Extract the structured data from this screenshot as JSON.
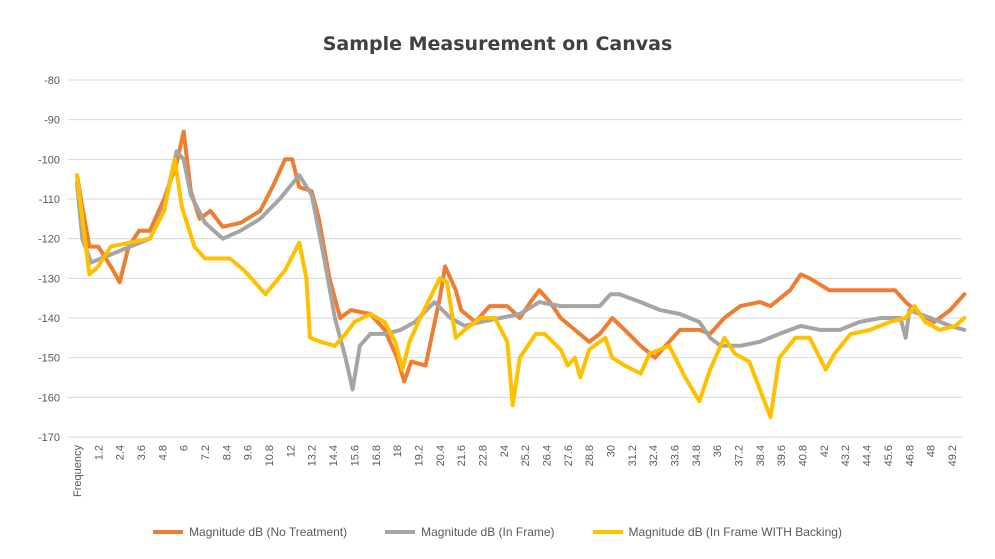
{
  "chart_data": {
    "type": "line",
    "title": "Sample Measurement  on Canvas",
    "xlabel": "",
    "ylabel": "",
    "ylim": [
      -170,
      -80
    ],
    "yticks": [
      "-80",
      "-90",
      "-100",
      "-110",
      "-120",
      "-130",
      "-140",
      "-150",
      "-160",
      "-170"
    ],
    "xticks": [
      "Frequency",
      "1.2",
      "2.4",
      "3.6",
      "4.8",
      "6",
      "7.2",
      "8.4",
      "9.6",
      "10.8",
      "12",
      "13.2",
      "14.4",
      "15.6",
      "16.8",
      "18",
      "19.2",
      "20.4",
      "21.6",
      "22.8",
      "24",
      "25.2",
      "26.4",
      "27.6",
      "28.8",
      "30",
      "31.2",
      "32.4",
      "33.6",
      "34.8",
      "36",
      "37.2",
      "38.4",
      "39.6",
      "40.8",
      "42",
      "43.2",
      "44.4",
      "45.6",
      "46.8",
      "48",
      "49.2"
    ],
    "grid": true,
    "legend_position": "bottom",
    "series": [
      {
        "name": "Magnitude dB (No Treatment)",
        "color": "#ED7D31",
        "points": [
          [
            0,
            -104
          ],
          [
            0.3,
            -112
          ],
          [
            0.7,
            -122
          ],
          [
            1.2,
            -122
          ],
          [
            1.9,
            -127
          ],
          [
            2.4,
            -131
          ],
          [
            2.9,
            -122
          ],
          [
            3.5,
            -118
          ],
          [
            4.1,
            -118
          ],
          [
            4.9,
            -110
          ],
          [
            5.6,
            -101
          ],
          [
            6.0,
            -93
          ],
          [
            6.4,
            -108
          ],
          [
            6.9,
            -115
          ],
          [
            7.5,
            -113
          ],
          [
            8.2,
            -117
          ],
          [
            9.2,
            -116
          ],
          [
            10.3,
            -113
          ],
          [
            11.1,
            -106
          ],
          [
            11.7,
            -100
          ],
          [
            12.1,
            -100
          ],
          [
            12.5,
            -107
          ],
          [
            13.2,
            -108
          ],
          [
            13.6,
            -115
          ],
          [
            14.2,
            -130
          ],
          [
            14.8,
            -140
          ],
          [
            15.4,
            -138
          ],
          [
            16.5,
            -139
          ],
          [
            17.3,
            -143
          ],
          [
            18.0,
            -150
          ],
          [
            18.4,
            -156
          ],
          [
            18.8,
            -151
          ],
          [
            19.6,
            -152
          ],
          [
            20.4,
            -135
          ],
          [
            20.7,
            -127
          ],
          [
            21.3,
            -133
          ],
          [
            21.6,
            -138
          ],
          [
            22.4,
            -141
          ],
          [
            23.2,
            -137
          ],
          [
            24.2,
            -137
          ],
          [
            24.9,
            -140
          ],
          [
            25.5,
            -136
          ],
          [
            26.0,
            -133
          ],
          [
            26.6,
            -136
          ],
          [
            27.2,
            -140
          ],
          [
            28.0,
            -143
          ],
          [
            28.8,
            -146
          ],
          [
            29.4,
            -144
          ],
          [
            30.1,
            -140
          ],
          [
            30.8,
            -143
          ],
          [
            31.7,
            -147
          ],
          [
            32.5,
            -150
          ],
          [
            33.1,
            -147
          ],
          [
            33.9,
            -143
          ],
          [
            35.0,
            -143
          ],
          [
            35.6,
            -144
          ],
          [
            36.4,
            -140
          ],
          [
            37.3,
            -137
          ],
          [
            38.4,
            -136
          ],
          [
            39.0,
            -137
          ],
          [
            40.1,
            -133
          ],
          [
            40.7,
            -129
          ],
          [
            41.2,
            -130
          ],
          [
            42.3,
            -133
          ],
          [
            44.0,
            -133
          ],
          [
            45.2,
            -133
          ],
          [
            46.0,
            -133
          ],
          [
            46.6,
            -136
          ],
          [
            47.4,
            -139
          ],
          [
            48.2,
            -141
          ],
          [
            49.1,
            -138
          ],
          [
            49.9,
            -134
          ]
        ]
      },
      {
        "name": "Magnitude dB (In Frame)",
        "color": "#A5A5A5",
        "points": [
          [
            0,
            -106
          ],
          [
            0.3,
            -120
          ],
          [
            0.8,
            -126
          ],
          [
            1.9,
            -124
          ],
          [
            3.0,
            -122
          ],
          [
            4.1,
            -120
          ],
          [
            4.9,
            -112
          ],
          [
            5.6,
            -98
          ],
          [
            6.0,
            -100
          ],
          [
            6.4,
            -109
          ],
          [
            7.2,
            -116
          ],
          [
            8.2,
            -120
          ],
          [
            9.2,
            -118
          ],
          [
            10.3,
            -115
          ],
          [
            11.4,
            -110
          ],
          [
            12.5,
            -104
          ],
          [
            13.2,
            -109
          ],
          [
            13.9,
            -125
          ],
          [
            14.5,
            -140
          ],
          [
            15.1,
            -150
          ],
          [
            15.5,
            -158
          ],
          [
            15.9,
            -147
          ],
          [
            16.5,
            -144
          ],
          [
            17.3,
            -144
          ],
          [
            18.2,
            -143
          ],
          [
            19.0,
            -141
          ],
          [
            20.1,
            -136
          ],
          [
            21.0,
            -140
          ],
          [
            21.8,
            -142
          ],
          [
            22.7,
            -141
          ],
          [
            23.8,
            -140
          ],
          [
            24.9,
            -139
          ],
          [
            26.0,
            -136
          ],
          [
            27.2,
            -137
          ],
          [
            28.3,
            -137
          ],
          [
            29.4,
            -137
          ],
          [
            30.0,
            -134
          ],
          [
            30.5,
            -134
          ],
          [
            31.7,
            -136
          ],
          [
            32.8,
            -138
          ],
          [
            33.9,
            -139
          ],
          [
            35.0,
            -141
          ],
          [
            35.6,
            -145
          ],
          [
            36.2,
            -147
          ],
          [
            36.7,
            -147
          ],
          [
            37.3,
            -147
          ],
          [
            38.4,
            -146
          ],
          [
            39.5,
            -144
          ],
          [
            40.7,
            -142
          ],
          [
            41.8,
            -143
          ],
          [
            42.9,
            -143
          ],
          [
            44.0,
            -141
          ],
          [
            45.2,
            -140
          ],
          [
            46.3,
            -140
          ],
          [
            46.6,
            -145
          ],
          [
            46.8,
            -138
          ],
          [
            48.0,
            -140
          ],
          [
            49.1,
            -142
          ],
          [
            49.9,
            -143
          ]
        ]
      },
      {
        "name": "Magnitude dB (In Frame WITH Backing)",
        "color": "#FFC000",
        "points": [
          [
            0,
            -104
          ],
          [
            0.3,
            -115
          ],
          [
            0.7,
            -129
          ],
          [
            1.2,
            -127
          ],
          [
            1.9,
            -122
          ],
          [
            3.0,
            -121
          ],
          [
            4.1,
            -120
          ],
          [
            4.9,
            -113
          ],
          [
            5.5,
            -100
          ],
          [
            5.9,
            -112
          ],
          [
            6.6,
            -122
          ],
          [
            7.2,
            -125
          ],
          [
            8.6,
            -125
          ],
          [
            9.4,
            -128
          ],
          [
            10.6,
            -134
          ],
          [
            11.7,
            -128
          ],
          [
            12.5,
            -121
          ],
          [
            12.9,
            -130
          ],
          [
            13.1,
            -145
          ],
          [
            13.7,
            -146
          ],
          [
            14.5,
            -147
          ],
          [
            15.1,
            -144
          ],
          [
            15.6,
            -141
          ],
          [
            16.5,
            -139
          ],
          [
            17.3,
            -141
          ],
          [
            17.9,
            -146
          ],
          [
            18.3,
            -153
          ],
          [
            18.7,
            -146
          ],
          [
            19.3,
            -140
          ],
          [
            20.4,
            -130
          ],
          [
            20.8,
            -131
          ],
          [
            21.3,
            -145
          ],
          [
            21.8,
            -143
          ],
          [
            22.7,
            -140
          ],
          [
            23.5,
            -140
          ],
          [
            24.2,
            -146
          ],
          [
            24.5,
            -162
          ],
          [
            24.9,
            -150
          ],
          [
            25.8,
            -144
          ],
          [
            26.3,
            -144
          ],
          [
            27.2,
            -148
          ],
          [
            27.6,
            -152
          ],
          [
            28.0,
            -150
          ],
          [
            28.3,
            -155
          ],
          [
            28.8,
            -148
          ],
          [
            29.7,
            -145
          ],
          [
            30.1,
            -150
          ],
          [
            30.8,
            -152
          ],
          [
            31.7,
            -154
          ],
          [
            32.2,
            -149
          ],
          [
            33.3,
            -147
          ],
          [
            34.2,
            -155
          ],
          [
            35.0,
            -161
          ],
          [
            35.6,
            -153
          ],
          [
            36.4,
            -145
          ],
          [
            37.0,
            -149
          ],
          [
            37.8,
            -151
          ],
          [
            38.4,
            -158
          ],
          [
            39.0,
            -165
          ],
          [
            39.5,
            -150
          ],
          [
            40.4,
            -145
          ],
          [
            41.2,
            -145
          ],
          [
            42.1,
            -153
          ],
          [
            42.6,
            -149
          ],
          [
            43.5,
            -144
          ],
          [
            44.6,
            -143
          ],
          [
            45.7,
            -141
          ],
          [
            46.6,
            -140
          ],
          [
            47.1,
            -137
          ],
          [
            47.7,
            -141
          ],
          [
            48.5,
            -143
          ],
          [
            49.4,
            -142
          ],
          [
            49.9,
            -140
          ]
        ]
      }
    ]
  }
}
